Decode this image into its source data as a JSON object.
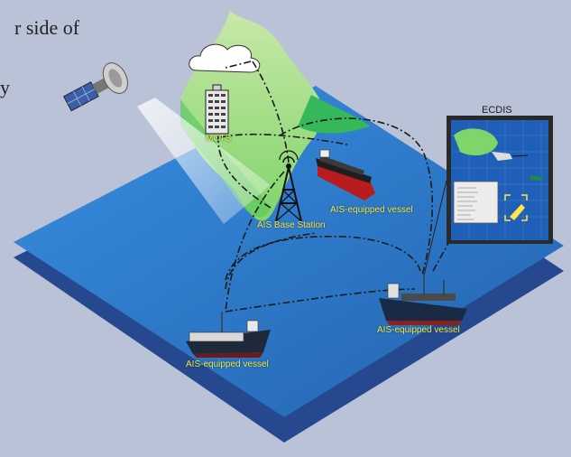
{
  "background_text": {
    "line1": "r side of",
    "line2": "y"
  },
  "labels": {
    "mcts": "MCTS",
    "ais_base_station": "AIS Base Station",
    "vessel_top": "AIS-equipped vessel",
    "vessel_right": "AIS-equipped vessel",
    "vessel_left": "AIS-equipped vessel",
    "ecdis": "ECDIS"
  },
  "colors": {
    "sea_top": "#2f7fd0",
    "sea_bottom": "#23468c",
    "land": "#7dd96b",
    "label_text": "#f2e640"
  }
}
